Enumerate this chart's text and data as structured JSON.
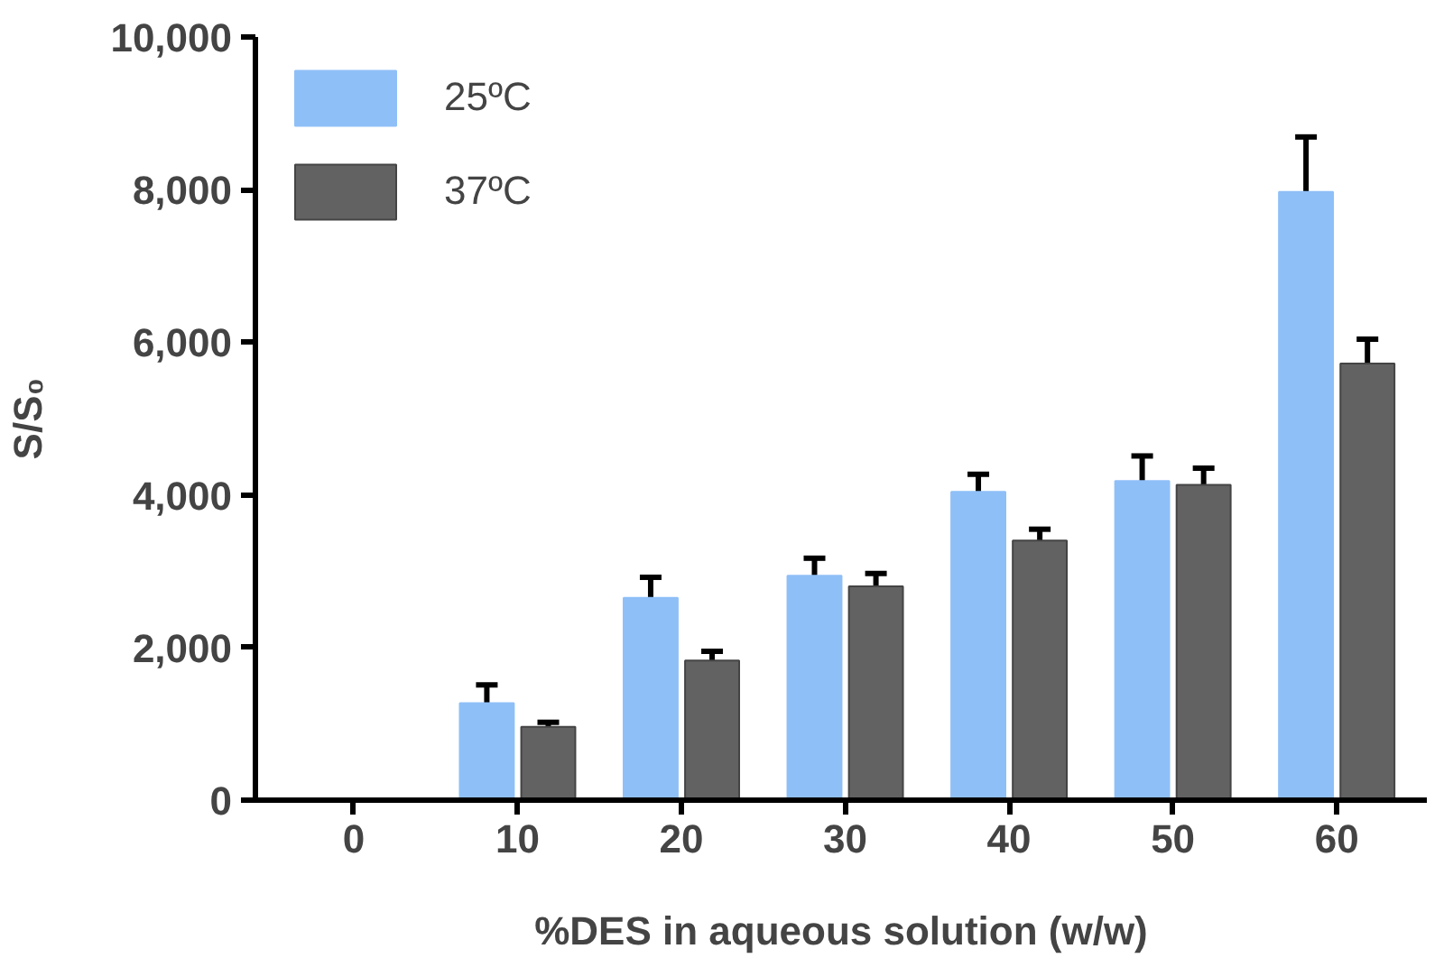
{
  "chart_data": {
    "type": "bar",
    "xlabel": "%DES in aqueous solution (w/w)",
    "ylabel": "S/S₀",
    "categories": [
      "0",
      "10",
      "20",
      "30",
      "40",
      "50",
      "60"
    ],
    "series": [
      {
        "name": "25ºC",
        "color": "#8fbff7",
        "values": [
          null,
          1270,
          2650,
          2940,
          4040,
          4180,
          7970
        ],
        "errors": [
          null,
          240,
          270,
          230,
          230,
          330,
          720
        ]
      },
      {
        "name": "37ºC",
        "color": "#626262",
        "values": [
          null,
          960,
          1830,
          2800,
          3400,
          4130,
          5720
        ],
        "errors": [
          null,
          60,
          120,
          170,
          150,
          220,
          320
        ]
      }
    ],
    "ylim": [
      0,
      10000
    ],
    "yticks": [
      {
        "value": 0,
        "label": "0"
      },
      {
        "value": 2000,
        "label": "2,000"
      },
      {
        "value": 4000,
        "label": "4,000"
      },
      {
        "value": 6000,
        "label": "6,000"
      },
      {
        "value": 8000,
        "label": "8,000"
      },
      {
        "value": 10000,
        "label": "10,000"
      }
    ],
    "grid": false,
    "legend": "top left"
  }
}
